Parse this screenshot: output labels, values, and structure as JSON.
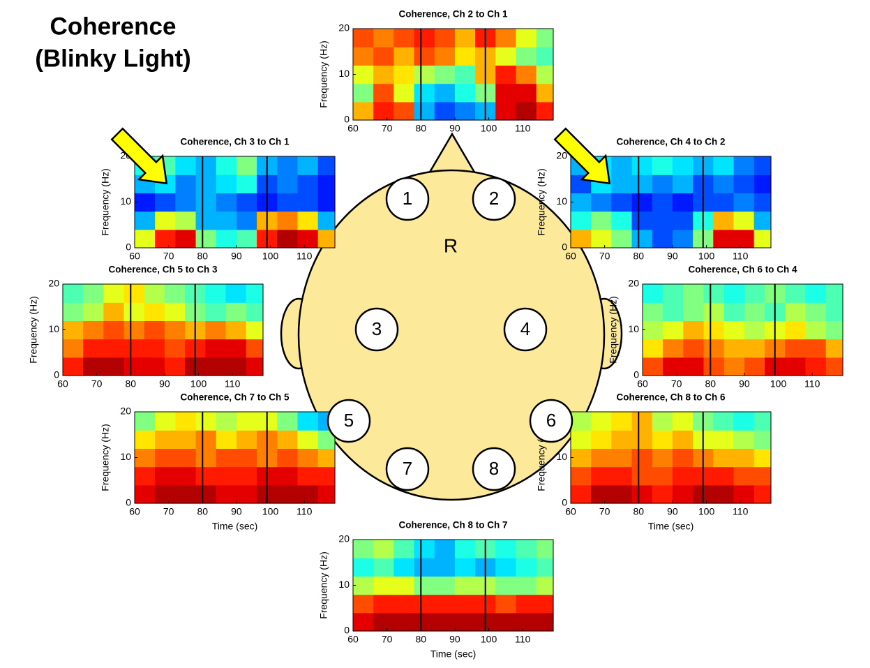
{
  "slide_title": [
    "Coherence",
    "(Blinky Light)"
  ],
  "head": {
    "front_label": "R",
    "electrodes": [
      1,
      2,
      3,
      4,
      5,
      6,
      7,
      8
    ]
  },
  "chart_data": [
    {
      "type": "heatmap",
      "title": "Coherence, Ch 2 to Ch 1",
      "ylabel": "Frequency (Hz)",
      "colormap": "jet",
      "xlim": [
        60,
        119
      ],
      "ylim": [
        0,
        20
      ],
      "xticks": [
        60,
        70,
        80,
        90,
        100,
        110
      ],
      "yticks": [
        0,
        10,
        20
      ],
      "xbins": [
        60,
        66,
        72,
        78,
        84,
        90,
        96,
        102,
        108,
        114,
        119
      ],
      "ybins": [
        0,
        4,
        8,
        12,
        16,
        20
      ],
      "vlines": [
        80,
        99
      ],
      "values": [
        [
          0.7,
          0.85,
          0.8,
          0.3,
          0.2,
          0.25,
          0.3,
          0.9,
          0.95,
          0.85
        ],
        [
          0.5,
          0.8,
          0.6,
          0.35,
          0.3,
          0.4,
          0.5,
          0.9,
          0.9,
          0.7
        ],
        [
          0.6,
          0.7,
          0.65,
          0.55,
          0.5,
          0.45,
          0.7,
          0.85,
          0.75,
          0.55
        ],
        [
          0.75,
          0.8,
          0.7,
          0.8,
          0.75,
          0.65,
          0.7,
          0.6,
          0.5,
          0.45
        ],
        [
          0.8,
          0.75,
          0.8,
          0.85,
          0.8,
          0.7,
          0.85,
          0.75,
          0.6,
          0.5
        ]
      ]
    },
    {
      "type": "heatmap",
      "title": "Coherence, Ch 3 to Ch 1",
      "ylabel": "Frequency (Hz)",
      "colormap": "jet",
      "xlim": [
        60,
        119
      ],
      "ylim": [
        0,
        20
      ],
      "xticks": [
        60,
        70,
        80,
        90,
        100,
        110
      ],
      "yticks": [
        0,
        10,
        20
      ],
      "xbins": [
        60,
        66,
        72,
        78,
        84,
        90,
        96,
        102,
        108,
        114,
        119
      ],
      "ybins": [
        0,
        4,
        8,
        12,
        16,
        20
      ],
      "vlines": [
        80,
        99
      ],
      "values": [
        [
          0.6,
          0.85,
          0.9,
          0.5,
          0.4,
          0.45,
          0.85,
          0.95,
          0.9,
          0.7
        ],
        [
          0.3,
          0.6,
          0.55,
          0.3,
          0.3,
          0.25,
          0.7,
          0.75,
          0.65,
          0.3
        ],
        [
          0.15,
          0.2,
          0.25,
          0.3,
          0.25,
          0.2,
          0.15,
          0.2,
          0.2,
          0.15
        ],
        [
          0.3,
          0.35,
          0.25,
          0.3,
          0.35,
          0.4,
          0.2,
          0.25,
          0.2,
          0.15
        ],
        [
          0.4,
          0.45,
          0.35,
          0.3,
          0.4,
          0.5,
          0.3,
          0.25,
          0.3,
          0.2
        ]
      ]
    },
    {
      "type": "heatmap",
      "title": "Coherence, Ch 4 to Ch 2",
      "ylabel": "Frequency (Hz)",
      "colormap": "jet",
      "xlim": [
        60,
        119
      ],
      "ylim": [
        0,
        20
      ],
      "xticks": [
        60,
        70,
        80,
        90,
        100,
        110
      ],
      "yticks": [
        0,
        10,
        20
      ],
      "xbins": [
        60,
        66,
        72,
        78,
        84,
        90,
        96,
        102,
        108,
        114,
        119
      ],
      "ybins": [
        0,
        4,
        8,
        12,
        16,
        20
      ],
      "vlines": [
        80,
        99
      ],
      "values": [
        [
          0.7,
          0.6,
          0.5,
          0.3,
          0.2,
          0.25,
          0.5,
          0.9,
          0.9,
          0.6
        ],
        [
          0.4,
          0.5,
          0.4,
          0.2,
          0.2,
          0.2,
          0.4,
          0.7,
          0.6,
          0.3
        ],
        [
          0.3,
          0.25,
          0.2,
          0.15,
          0.2,
          0.15,
          0.2,
          0.2,
          0.25,
          0.2
        ],
        [
          0.2,
          0.35,
          0.3,
          0.3,
          0.25,
          0.3,
          0.2,
          0.25,
          0.2,
          0.15
        ],
        [
          0.3,
          0.35,
          0.3,
          0.35,
          0.4,
          0.35,
          0.3,
          0.35,
          0.25,
          0.2
        ]
      ]
    },
    {
      "type": "heatmap",
      "title": "Coherence, Ch 5 to Ch 3",
      "ylabel": "Frequency (Hz)",
      "colormap": "jet",
      "xlim": [
        60,
        119
      ],
      "ylim": [
        0,
        20
      ],
      "xticks": [
        60,
        70,
        80,
        90,
        100,
        110
      ],
      "yticks": [
        0,
        10,
        20
      ],
      "xbins": [
        60,
        66,
        72,
        78,
        84,
        90,
        96,
        102,
        108,
        114,
        119
      ],
      "ybins": [
        0,
        4,
        8,
        12,
        16,
        20
      ],
      "vlines": [
        80,
        99
      ],
      "values": [
        [
          0.85,
          0.95,
          0.95,
          0.9,
          0.9,
          0.85,
          0.95,
          0.95,
          0.95,
          0.9
        ],
        [
          0.75,
          0.85,
          0.85,
          0.85,
          0.85,
          0.8,
          0.85,
          0.9,
          0.9,
          0.8
        ],
        [
          0.7,
          0.75,
          0.8,
          0.75,
          0.8,
          0.75,
          0.7,
          0.75,
          0.7,
          0.6
        ],
        [
          0.5,
          0.55,
          0.7,
          0.6,
          0.65,
          0.6,
          0.5,
          0.45,
          0.5,
          0.45
        ],
        [
          0.45,
          0.5,
          0.6,
          0.65,
          0.55,
          0.5,
          0.45,
          0.4,
          0.35,
          0.4
        ]
      ]
    },
    {
      "type": "heatmap",
      "title": "Coherence, Ch 6 to Ch 4",
      "ylabel": "Frequency (Hz)",
      "colormap": "jet",
      "xlim": [
        60,
        119
      ],
      "ylim": [
        0,
        20
      ],
      "xticks": [
        60,
        70,
        80,
        90,
        100,
        110
      ],
      "yticks": [
        0,
        10,
        20
      ],
      "xbins": [
        60,
        66,
        72,
        78,
        84,
        90,
        96,
        102,
        108,
        114,
        119
      ],
      "ybins": [
        0,
        4,
        8,
        12,
        16,
        20
      ],
      "vlines": [
        80,
        99
      ],
      "values": [
        [
          0.8,
          0.9,
          0.9,
          0.8,
          0.75,
          0.8,
          0.9,
          0.9,
          0.85,
          0.8
        ],
        [
          0.65,
          0.75,
          0.8,
          0.75,
          0.7,
          0.7,
          0.75,
          0.8,
          0.8,
          0.7
        ],
        [
          0.55,
          0.6,
          0.7,
          0.65,
          0.6,
          0.55,
          0.6,
          0.65,
          0.55,
          0.5
        ],
        [
          0.5,
          0.45,
          0.5,
          0.55,
          0.45,
          0.5,
          0.45,
          0.55,
          0.5,
          0.45
        ],
        [
          0.4,
          0.45,
          0.5,
          0.45,
          0.4,
          0.45,
          0.5,
          0.45,
          0.4,
          0.45
        ]
      ]
    },
    {
      "type": "heatmap",
      "title": "Coherence, Ch 7 to Ch 5",
      "ylabel": "Frequency (Hz)",
      "xlabel": "Time (sec)",
      "colormap": "jet",
      "xlim": [
        60,
        119
      ],
      "ylim": [
        0,
        20
      ],
      "xticks": [
        60,
        70,
        80,
        90,
        100,
        110
      ],
      "yticks": [
        0,
        10,
        20
      ],
      "xbins": [
        60,
        66,
        72,
        78,
        84,
        90,
        96,
        102,
        108,
        114,
        119
      ],
      "ybins": [
        0,
        4,
        8,
        12,
        16,
        20
      ],
      "vlines": [
        80,
        99
      ],
      "values": [
        [
          0.9,
          0.95,
          0.95,
          0.95,
          0.9,
          0.9,
          0.95,
          0.95,
          0.95,
          0.9
        ],
        [
          0.85,
          0.9,
          0.9,
          0.85,
          0.85,
          0.85,
          0.9,
          0.9,
          0.85,
          0.85
        ],
        [
          0.75,
          0.8,
          0.8,
          0.75,
          0.8,
          0.8,
          0.75,
          0.8,
          0.75,
          0.7
        ],
        [
          0.65,
          0.7,
          0.7,
          0.75,
          0.65,
          0.7,
          0.75,
          0.7,
          0.6,
          0.5
        ],
        [
          0.5,
          0.6,
          0.65,
          0.6,
          0.55,
          0.6,
          0.6,
          0.5,
          0.35,
          0.3
        ]
      ]
    },
    {
      "type": "heatmap",
      "title": "Coherence, Ch 8 to Ch 6",
      "ylabel": "Frequency (Hz)",
      "xlabel": "Time (sec)",
      "colormap": "jet",
      "xlim": [
        60,
        119
      ],
      "ylim": [
        0,
        20
      ],
      "xticks": [
        60,
        70,
        80,
        90,
        100,
        110
      ],
      "yticks": [
        0,
        10,
        20
      ],
      "xbins": [
        60,
        66,
        72,
        78,
        84,
        90,
        96,
        102,
        108,
        114,
        119
      ],
      "ybins": [
        0,
        4,
        8,
        12,
        16,
        20
      ],
      "vlines": [
        80,
        99
      ],
      "values": [
        [
          0.85,
          0.95,
          0.95,
          0.9,
          0.85,
          0.9,
          0.95,
          0.95,
          0.9,
          0.85
        ],
        [
          0.8,
          0.85,
          0.85,
          0.8,
          0.8,
          0.85,
          0.85,
          0.85,
          0.8,
          0.8
        ],
        [
          0.7,
          0.75,
          0.75,
          0.8,
          0.75,
          0.8,
          0.75,
          0.7,
          0.7,
          0.65
        ],
        [
          0.6,
          0.65,
          0.7,
          0.7,
          0.65,
          0.7,
          0.6,
          0.6,
          0.55,
          0.5
        ],
        [
          0.55,
          0.6,
          0.65,
          0.7,
          0.55,
          0.6,
          0.5,
          0.45,
          0.4,
          0.45
        ]
      ]
    },
    {
      "type": "heatmap",
      "title": "Coherence, Ch 8 to Ch 7",
      "ylabel": "Frequency (Hz)",
      "xlabel": "Time (sec)",
      "colormap": "jet",
      "xlim": [
        60,
        119
      ],
      "ylim": [
        0,
        20
      ],
      "xticks": [
        60,
        70,
        80,
        90,
        100,
        110
      ],
      "yticks": [
        0,
        10,
        20
      ],
      "xbins": [
        60,
        66,
        72,
        78,
        84,
        90,
        96,
        102,
        108,
        114,
        119
      ],
      "ybins": [
        0,
        4,
        8,
        12,
        16,
        20
      ],
      "vlines": [
        80,
        99
      ],
      "values": [
        [
          0.9,
          0.95,
          0.95,
          0.95,
          0.95,
          0.95,
          0.95,
          0.95,
          0.95,
          0.95
        ],
        [
          0.8,
          0.85,
          0.85,
          0.85,
          0.85,
          0.85,
          0.85,
          0.8,
          0.85,
          0.85
        ],
        [
          0.55,
          0.6,
          0.6,
          0.5,
          0.5,
          0.55,
          0.55,
          0.5,
          0.5,
          0.55
        ],
        [
          0.4,
          0.45,
          0.35,
          0.3,
          0.3,
          0.35,
          0.3,
          0.35,
          0.4,
          0.45
        ],
        [
          0.5,
          0.55,
          0.45,
          0.35,
          0.3,
          0.4,
          0.45,
          0.4,
          0.45,
          0.5
        ]
      ]
    }
  ]
}
